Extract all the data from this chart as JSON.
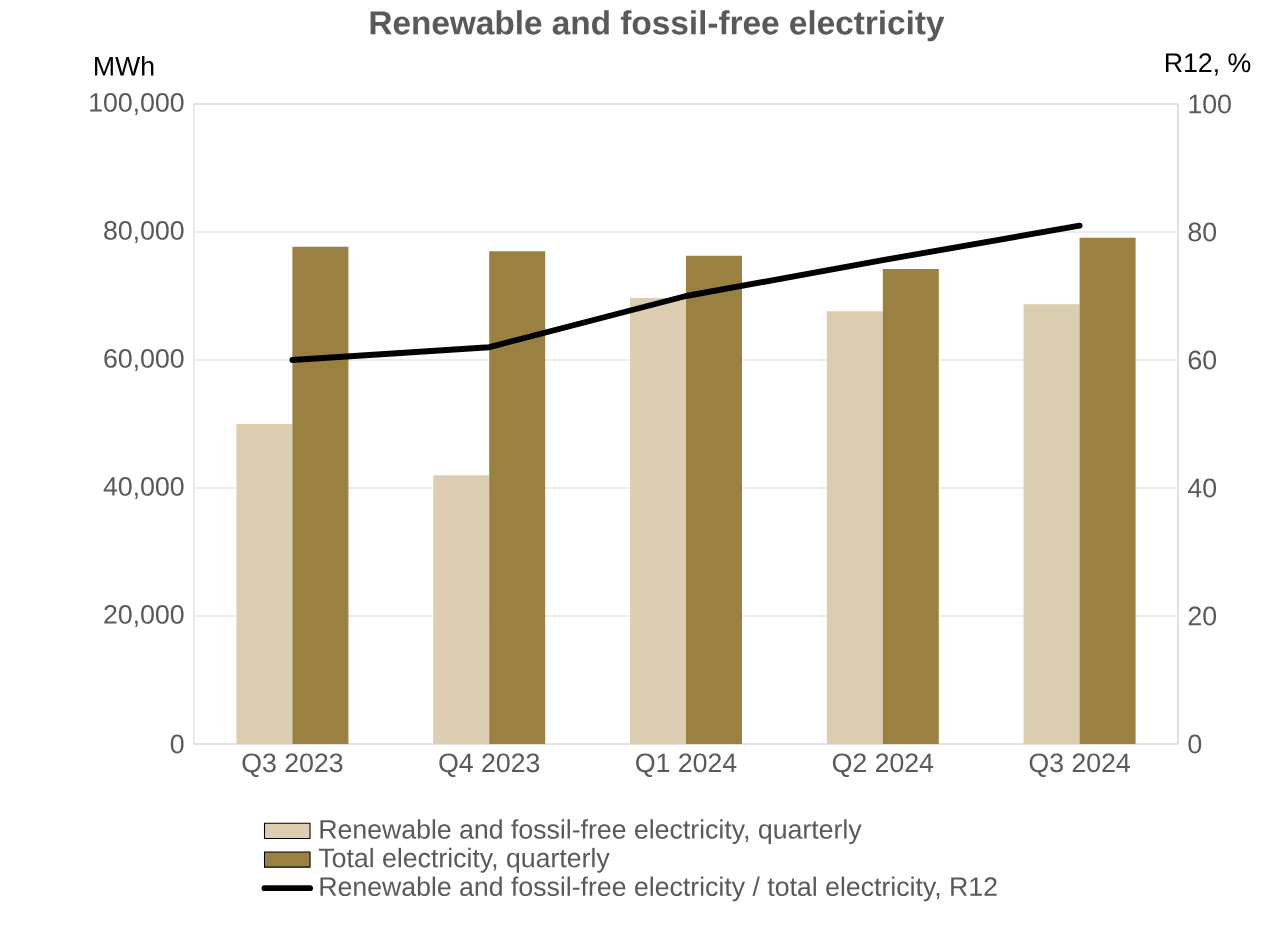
{
  "chart_data": {
    "type": "bar",
    "title": "Renewable and fossil-free electricity",
    "ylabel": "MWh",
    "y2label": "R12, %",
    "categories": [
      "Q3 2023",
      "Q4 2023",
      "Q1 2024",
      "Q2 2024",
      "Q3 2024"
    ],
    "series": [
      {
        "name": "Renewable and fossil-free electricity, quarterly",
        "color": "#dccdb0",
        "values": [
          50000,
          42000,
          69700,
          67600,
          68700
        ]
      },
      {
        "name": "Total electricity, quarterly",
        "color": "#9b8141",
        "values": [
          77700,
          77000,
          76300,
          74200,
          79100
        ]
      },
      {
        "name": "Renewable and fossil-free electricity / total electricity, R12",
        "type": "line",
        "axis": "y2",
        "color": "#000000",
        "values": [
          60,
          62,
          70,
          75.6,
          81
        ]
      }
    ],
    "ylim": [
      0,
      100000
    ],
    "yticks": [
      0,
      {
        "value": 20000,
        "label": "20,000"
      },
      {
        "value": 40000,
        "label": "40,000"
      },
      {
        "value": 60000,
        "label": "60,000"
      },
      {
        "value": 80000,
        "label": "80,000"
      },
      {
        "value": 100000,
        "label": "100,000"
      }
    ],
    "y2lim": [
      0,
      100
    ],
    "y2ticks": [
      0,
      20,
      40,
      60,
      80,
      100
    ],
    "grid": "y",
    "legend": "bottom",
    "marker": "none",
    "line_style": "solid"
  }
}
